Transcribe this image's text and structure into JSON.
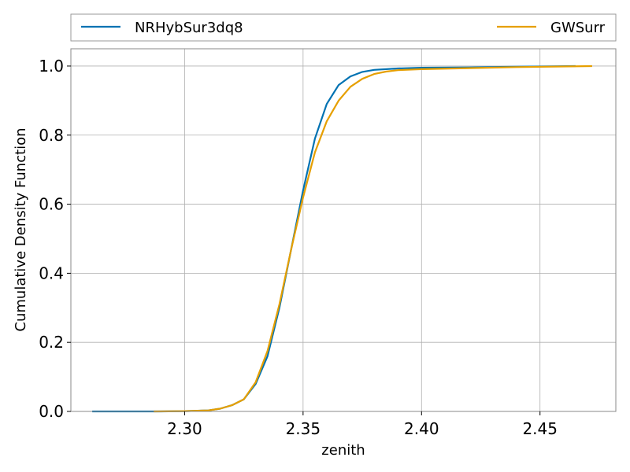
{
  "chart_data": {
    "type": "line",
    "title": "",
    "xlabel": "zenith",
    "ylabel": "Cumulative Density Function",
    "xlim": [
      2.252,
      2.482
    ],
    "ylim": [
      0.0,
      1.05
    ],
    "x_ticks": [
      2.3,
      2.35,
      2.4,
      2.45
    ],
    "x_tick_labels": [
      "2.30",
      "2.35",
      "2.40",
      "2.45"
    ],
    "y_ticks": [
      0.0,
      0.2,
      0.4,
      0.6,
      0.8,
      1.0
    ],
    "y_tick_labels": [
      "0.0",
      "0.2",
      "0.4",
      "0.6",
      "0.8",
      "1.0"
    ],
    "grid": true,
    "legend_position": "above plot, full width",
    "series": [
      {
        "name": "NRHybSur3dq8",
        "color": "#0072b2",
        "points": [
          [
            2.261,
            0.0
          ],
          [
            2.29,
            0.0
          ],
          [
            2.3,
            0.001
          ],
          [
            2.31,
            0.003
          ],
          [
            2.315,
            0.008
          ],
          [
            2.32,
            0.018
          ],
          [
            2.325,
            0.035
          ],
          [
            2.33,
            0.08
          ],
          [
            2.335,
            0.16
          ],
          [
            2.34,
            0.3
          ],
          [
            2.345,
            0.47
          ],
          [
            2.35,
            0.64
          ],
          [
            2.355,
            0.79
          ],
          [
            2.36,
            0.89
          ],
          [
            2.365,
            0.945
          ],
          [
            2.37,
            0.97
          ],
          [
            2.375,
            0.983
          ],
          [
            2.38,
            0.989
          ],
          [
            2.39,
            0.993
          ],
          [
            2.4,
            0.995
          ],
          [
            2.42,
            0.996
          ],
          [
            2.44,
            0.998
          ],
          [
            2.465,
            1.0
          ]
        ]
      },
      {
        "name": "GWSurr",
        "color": "#e69f00",
        "points": [
          [
            2.287,
            0.0
          ],
          [
            2.3,
            0.001
          ],
          [
            2.31,
            0.003
          ],
          [
            2.315,
            0.008
          ],
          [
            2.32,
            0.018
          ],
          [
            2.325,
            0.035
          ],
          [
            2.33,
            0.085
          ],
          [
            2.335,
            0.175
          ],
          [
            2.34,
            0.31
          ],
          [
            2.345,
            0.47
          ],
          [
            2.35,
            0.62
          ],
          [
            2.355,
            0.75
          ],
          [
            2.36,
            0.84
          ],
          [
            2.365,
            0.9
          ],
          [
            2.37,
            0.94
          ],
          [
            2.375,
            0.963
          ],
          [
            2.38,
            0.977
          ],
          [
            2.385,
            0.984
          ],
          [
            2.39,
            0.988
          ],
          [
            2.4,
            0.991
          ],
          [
            2.42,
            0.994
          ],
          [
            2.44,
            0.997
          ],
          [
            2.472,
            1.0
          ]
        ]
      }
    ]
  }
}
